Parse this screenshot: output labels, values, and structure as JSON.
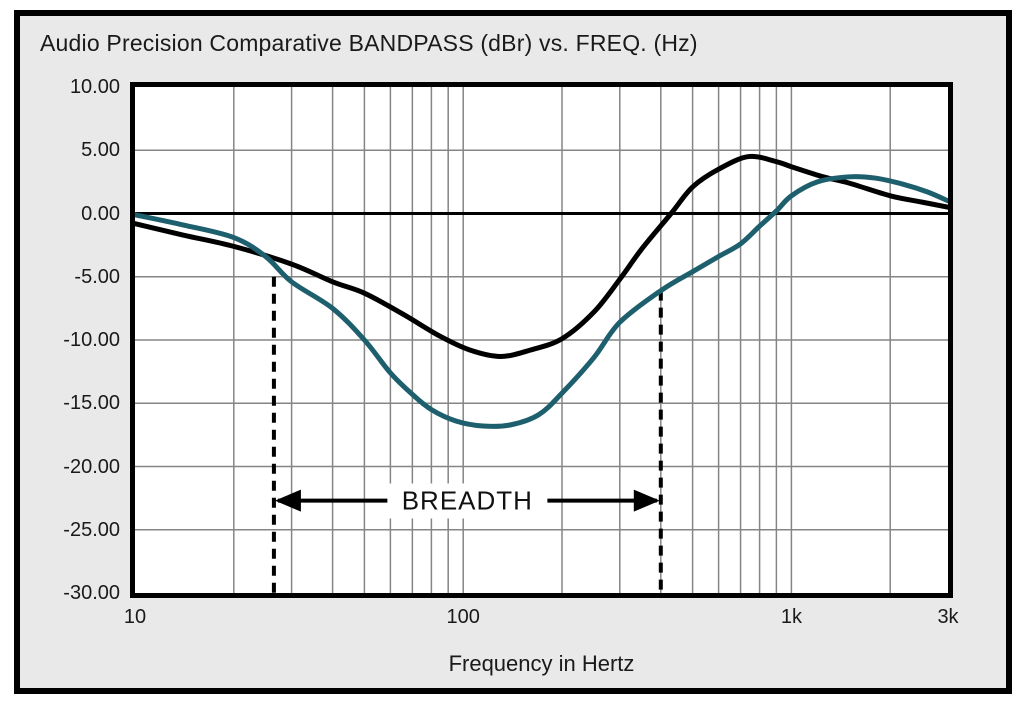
{
  "title": "Audio Precision Comparative BANDPASS (dBr) vs. FREQ. (Hz)",
  "colors": {
    "outer_background": "#e9e9e9",
    "plot_background": "#ffffff",
    "grid": "#858585",
    "axis_and_frame": "#000000",
    "series_black": "#000000",
    "series_teal": "#1e5f6e",
    "text": "#1a1a1a"
  },
  "chart_data": {
    "type": "line",
    "title": "Audio Precision Comparative BANDPASS (dBr) vs. FREQ. (Hz)",
    "xlabel": "Frequency in Hertz",
    "ylabel": "BANDPASS (dBr)",
    "x_scale": "log",
    "xlim": [
      10,
      3000
    ],
    "ylim": [
      -30,
      10
    ],
    "grid": "on",
    "legend": "none",
    "x_ticks": [
      {
        "value": 10,
        "label": "10"
      },
      {
        "value": 100,
        "label": "100"
      },
      {
        "value": 1000,
        "label": "1k"
      },
      {
        "value": 3000,
        "label": "3k"
      }
    ],
    "x_gridlines_hz": [
      20,
      30,
      40,
      50,
      60,
      70,
      80,
      90,
      100,
      200,
      300,
      400,
      500,
      600,
      700,
      800,
      900,
      1000,
      2000
    ],
    "y_ticks": [
      {
        "value": 10,
        "label": "10.00"
      },
      {
        "value": 5,
        "label": "5.00"
      },
      {
        "value": 0,
        "label": "0.00"
      },
      {
        "value": -5,
        "label": "-5.00"
      },
      {
        "value": -10,
        "label": "-10.00"
      },
      {
        "value": -15,
        "label": "-15.00"
      },
      {
        "value": -20,
        "label": "-20.00"
      },
      {
        "value": -25,
        "label": "-25.00"
      },
      {
        "value": -30,
        "label": "-30.00"
      }
    ],
    "zero_line_db": 0,
    "series": [
      {
        "name": "black-response",
        "color": "#000000",
        "points_hz_db": [
          [
            10,
            -0.8
          ],
          [
            14,
            -1.7
          ],
          [
            20,
            -2.6
          ],
          [
            30,
            -4.0
          ],
          [
            40,
            -5.4
          ],
          [
            50,
            -6.3
          ],
          [
            65,
            -7.9
          ],
          [
            85,
            -9.7
          ],
          [
            105,
            -10.8
          ],
          [
            130,
            -11.3
          ],
          [
            160,
            -10.8
          ],
          [
            200,
            -9.9
          ],
          [
            250,
            -7.8
          ],
          [
            300,
            -5.2
          ],
          [
            350,
            -2.8
          ],
          [
            430,
            0.0
          ],
          [
            500,
            2.1
          ],
          [
            600,
            3.5
          ],
          [
            740,
            4.5
          ],
          [
            900,
            4.1
          ],
          [
            1000,
            3.7
          ],
          [
            1250,
            2.9
          ],
          [
            1500,
            2.4
          ],
          [
            2000,
            1.4
          ],
          [
            2500,
            0.9
          ],
          [
            3000,
            0.5
          ]
        ]
      },
      {
        "name": "teal-response",
        "color": "#1e5f6e",
        "points_hz_db": [
          [
            10,
            -0.1
          ],
          [
            14,
            -0.9
          ],
          [
            20,
            -1.9
          ],
          [
            25,
            -3.4
          ],
          [
            30,
            -5.4
          ],
          [
            40,
            -7.5
          ],
          [
            50,
            -10.0
          ],
          [
            60,
            -12.6
          ],
          [
            70,
            -14.3
          ],
          [
            80,
            -15.5
          ],
          [
            95,
            -16.4
          ],
          [
            115,
            -16.8
          ],
          [
            140,
            -16.7
          ],
          [
            170,
            -15.9
          ],
          [
            200,
            -14.2
          ],
          [
            250,
            -11.4
          ],
          [
            300,
            -8.6
          ],
          [
            400,
            -6.1
          ],
          [
            500,
            -4.6
          ],
          [
            600,
            -3.4
          ],
          [
            700,
            -2.4
          ],
          [
            800,
            -1.0
          ],
          [
            900,
            0.2
          ],
          [
            1000,
            1.4
          ],
          [
            1200,
            2.5
          ],
          [
            1500,
            2.9
          ],
          [
            1800,
            2.8
          ],
          [
            2200,
            2.3
          ],
          [
            2600,
            1.7
          ],
          [
            3000,
            1.0
          ]
        ]
      }
    ],
    "annotations": {
      "breadth": {
        "label": "BREADTH",
        "arrow_y_db": -22.7,
        "from_hz": 26.5,
        "to_hz": 400
      },
      "dashed_lines": [
        {
          "x_hz": 26.5,
          "top_db": -5.0,
          "bottom_db": -30
        },
        {
          "x_hz": 400,
          "top_db": -6.1,
          "bottom_db": -30
        }
      ]
    }
  }
}
